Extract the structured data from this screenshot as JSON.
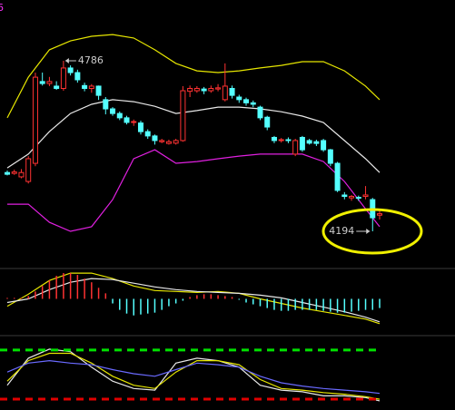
{
  "chart_data": [
    {
      "type": "candlestick",
      "title": "6",
      "title_color": "#ff33ff",
      "ylim": [
        4068,
        4997
      ],
      "up_color": "#ff3232",
      "down_color": "#54ffff",
      "open": [
        4398,
        4395,
        4383,
        4367,
        4430,
        4714,
        4707,
        4698,
        4690,
        4761,
        4745,
        4700,
        4690,
        4698,
        4651,
        4619,
        4603,
        4588,
        4572,
        4570,
        4540,
        4525,
        4505,
        4499,
        4500,
        4509,
        4680,
        4682,
        4688,
        4682,
        4688,
        4651,
        4690,
        4660,
        4651,
        4640,
        4625,
        4590,
        4520,
        4509,
        4512,
        4462,
        4520,
        4509,
        4505,
        4509,
        4477,
        4430,
        4320,
        4310,
        4312,
        4315,
        4304,
        4250
      ],
      "close": [
        4392,
        4400,
        4398,
        4446,
        4729,
        4707,
        4714,
        4690,
        4761,
        4745,
        4720,
        4690,
        4698,
        4666,
        4619,
        4603,
        4588,
        4572,
        4575,
        4540,
        4525,
        4509,
        4509,
        4505,
        4509,
        4682,
        4690,
        4690,
        4682,
        4690,
        4692,
        4698,
        4666,
        4651,
        4640,
        4635,
        4588,
        4556,
        4509,
        4512,
        4509,
        4509,
        4477,
        4500,
        4499,
        4477,
        4430,
        4336,
        4315,
        4315,
        4310,
        4320,
        4241,
        4255
      ],
      "high": [
        4405,
        4408,
        4410,
        4455,
        4745,
        4745,
        4730,
        4715,
        4786,
        4770,
        4755,
        4710,
        4705,
        4700,
        4660,
        4625,
        4610,
        4595,
        4582,
        4578,
        4548,
        4530,
        4515,
        4512,
        4515,
        4698,
        4700,
        4698,
        4695,
        4700,
        4705,
        4777,
        4700,
        4668,
        4658,
        4648,
        4630,
        4595,
        4525,
        4518,
        4520,
        4515,
        4525,
        4515,
        4512,
        4515,
        4480,
        4435,
        4330,
        4320,
        4318,
        4351,
        4310,
        4265
      ],
      "low": [
        4388,
        4390,
        4378,
        4360,
        4420,
        4700,
        4698,
        4685,
        4682,
        4735,
        4710,
        4680,
        4675,
        4650,
        4600,
        4595,
        4580,
        4565,
        4560,
        4530,
        4515,
        4495,
        4500,
        4495,
        4495,
        4505,
        4660,
        4675,
        4670,
        4675,
        4680,
        4645,
        4655,
        4640,
        4630,
        4625,
        4580,
        4545,
        4500,
        4502,
        4500,
        4455,
        4470,
        4495,
        4490,
        4470,
        4420,
        4330,
        4305,
        4300,
        4300,
        4305,
        4194,
        4235
      ],
      "lines": [
        {
          "color": "#e6e600",
          "x": [
            0,
            3,
            6,
            9,
            12,
            15,
            18,
            21,
            24,
            27,
            30,
            33,
            36,
            39,
            42,
            45,
            48,
            51,
            53
          ],
          "values": [
            4588,
            4729,
            4824,
            4855,
            4871,
            4877,
            4865,
            4824,
            4777,
            4751,
            4745,
            4751,
            4761,
            4770,
            4783,
            4783,
            4751,
            4698,
            4651
          ]
        },
        {
          "color": "#e8e8e8",
          "x": [
            0,
            3,
            6,
            9,
            12,
            15,
            18,
            21,
            24,
            27,
            30,
            33,
            36,
            39,
            42,
            45,
            48,
            51,
            53
          ],
          "values": [
            4414,
            4462,
            4540,
            4603,
            4635,
            4651,
            4644,
            4628,
            4603,
            4613,
            4625,
            4625,
            4619,
            4609,
            4594,
            4572,
            4509,
            4446,
            4398
          ]
        },
        {
          "color": "#e020e0",
          "x": [
            0,
            3,
            6,
            9,
            12,
            15,
            18,
            21,
            24,
            27,
            30,
            33,
            36,
            39,
            42,
            45,
            48,
            51,
            53
          ],
          "values": [
            4288,
            4288,
            4225,
            4194,
            4210,
            4304,
            4446,
            4477,
            4430,
            4436,
            4446,
            4455,
            4462,
            4462,
            4462,
            4436,
            4367,
            4272,
            4210
          ]
        }
      ],
      "annotations": [
        {
          "value": 4786,
          "label": "4786"
        },
        {
          "value": 4194,
          "label": "4194"
        }
      ]
    },
    {
      "type": "macd",
      "ylim": [
        -38,
        32
      ],
      "up_color": "#ff3232",
      "down_color": "#54ffff",
      "values": [
        1,
        1,
        1,
        3,
        8,
        14,
        20,
        25,
        28,
        28,
        26,
        22,
        18,
        12,
        6,
        -5,
        -12,
        -16,
        -18,
        -17,
        -16,
        -15,
        -12,
        -8,
        -5,
        -2,
        2,
        4,
        5,
        5,
        4,
        3,
        2,
        -1,
        -4,
        -6,
        -8,
        -10,
        -12,
        -13,
        -13,
        -12,
        -12,
        -12,
        -12,
        -13,
        -14,
        -15,
        -15,
        -14,
        -13,
        -12,
        -12,
        -10
      ],
      "lines": [
        {
          "color": "#e6e600",
          "x": [
            0,
            3,
            6,
            9,
            12,
            15,
            18,
            21,
            24,
            27,
            30,
            33,
            36,
            39,
            42,
            45,
            48,
            51,
            53
          ],
          "values": [
            -8,
            5,
            20,
            28,
            28,
            22,
            14,
            9,
            8,
            7,
            8,
            6,
            0,
            -5,
            -10,
            -14,
            -18,
            -22,
            -27
          ]
        },
        {
          "color": "#e8e8e8",
          "x": [
            0,
            3,
            6,
            9,
            12,
            15,
            18,
            21,
            24,
            27,
            30,
            33,
            36,
            39,
            42,
            45,
            48,
            51,
            53
          ],
          "values": [
            -4,
            0,
            10,
            18,
            22,
            21,
            17,
            13,
            10,
            8,
            7,
            6,
            4,
            1,
            -4,
            -9,
            -14,
            -20,
            -25
          ]
        }
      ]
    },
    {
      "type": "kdj",
      "ylim": [
        9,
        92
      ],
      "hlines": [
        {
          "value": 80,
          "color": "#00e000"
        },
        {
          "value": 20,
          "color": "#e00000"
        }
      ],
      "lines": [
        {
          "color": "#e8e8e8",
          "x": [
            0,
            3,
            6,
            9,
            12,
            15,
            18,
            21,
            24,
            27,
            30,
            33,
            36,
            39,
            42,
            45,
            48,
            51,
            53
          ],
          "values": [
            37,
            70,
            81,
            78,
            59,
            42,
            33,
            31,
            64,
            70,
            67,
            59,
            37,
            31,
            29,
            24,
            24,
            22,
            18
          ]
        },
        {
          "color": "#e6e600",
          "x": [
            0,
            3,
            6,
            9,
            12,
            15,
            18,
            21,
            24,
            27,
            30,
            33,
            36,
            39,
            42,
            45,
            48,
            51,
            53
          ],
          "values": [
            42,
            67,
            76,
            76,
            64,
            48,
            37,
            33,
            53,
            67,
            67,
            62,
            44,
            33,
            31,
            28,
            26,
            23,
            20
          ]
        },
        {
          "color": "#6a6aff",
          "x": [
            0,
            3,
            6,
            9,
            12,
            15,
            18,
            21,
            24,
            27,
            30,
            33,
            36,
            39,
            42,
            45,
            48,
            51,
            53
          ],
          "values": [
            53,
            64,
            67,
            64,
            62,
            56,
            51,
            48,
            56,
            64,
            62,
            59,
            48,
            40,
            36,
            33,
            31,
            29,
            27
          ]
        }
      ]
    }
  ]
}
